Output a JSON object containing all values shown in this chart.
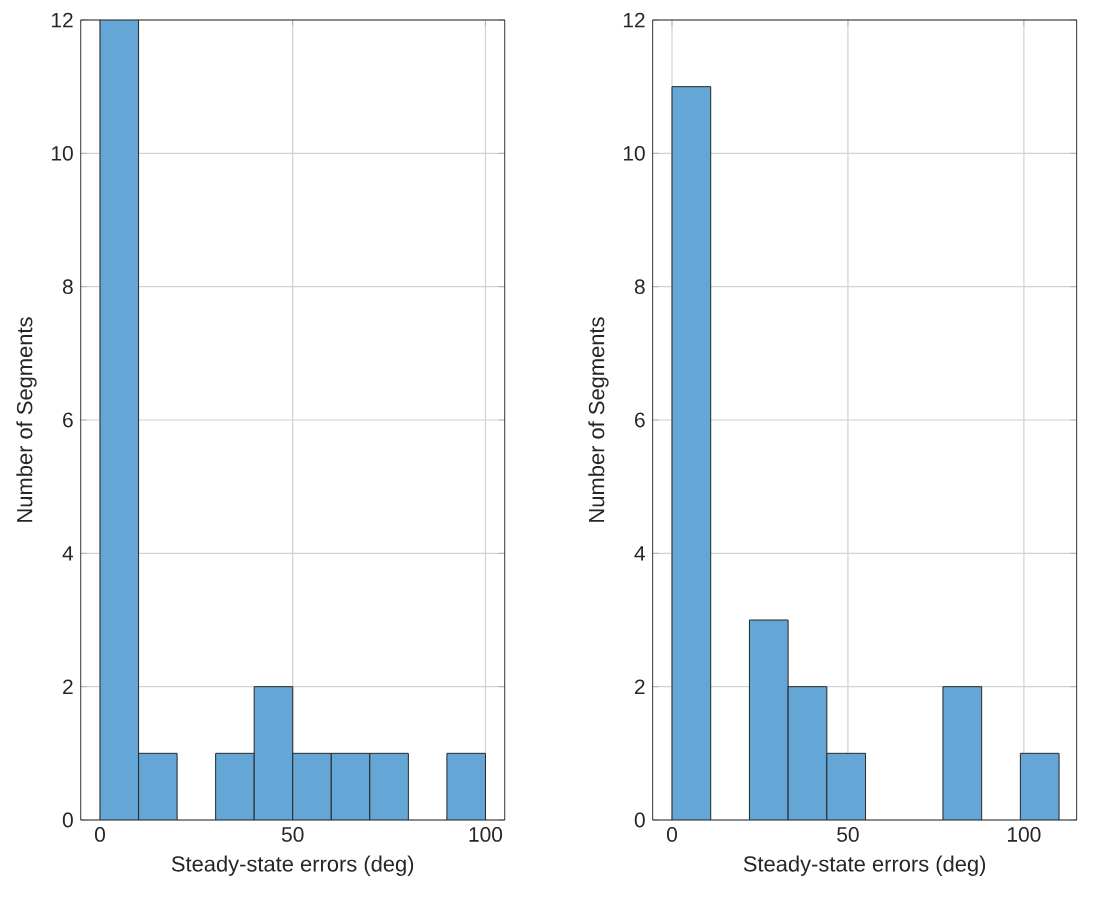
{
  "chart_data": [
    {
      "type": "histogram",
      "xlabel": "Steady-state errors (deg)",
      "ylabel": "Number of Segments",
      "bins": [
        0,
        10,
        20,
        30,
        40,
        50,
        60,
        70,
        80,
        90,
        100
      ],
      "values": [
        12,
        1,
        0,
        1,
        2,
        1,
        1,
        1,
        0,
        1
      ],
      "color": "#64a6d6",
      "xlim": [
        -5,
        105
      ],
      "ylim": [
        0,
        12
      ],
      "xticks": [
        0,
        50,
        100
      ],
      "yticks": [
        0,
        2,
        4,
        6,
        8,
        10,
        12
      ],
      "grid": true
    },
    {
      "type": "histogram",
      "xlabel": "Steady-state errors (deg)",
      "ylabel": "Number of Segments",
      "bins": [
        0,
        11,
        22,
        33,
        44,
        55,
        66,
        77,
        88,
        99,
        110
      ],
      "values": [
        11,
        0,
        3,
        2,
        1,
        0,
        0,
        2,
        0,
        1
      ],
      "color": "#64a6d6",
      "xlim": [
        -5.5,
        115
      ],
      "ylim": [
        0,
        12
      ],
      "xticks": [
        0,
        50,
        100
      ],
      "yticks": [
        0,
        2,
        4,
        6,
        8,
        10,
        12
      ],
      "grid": true
    }
  ]
}
